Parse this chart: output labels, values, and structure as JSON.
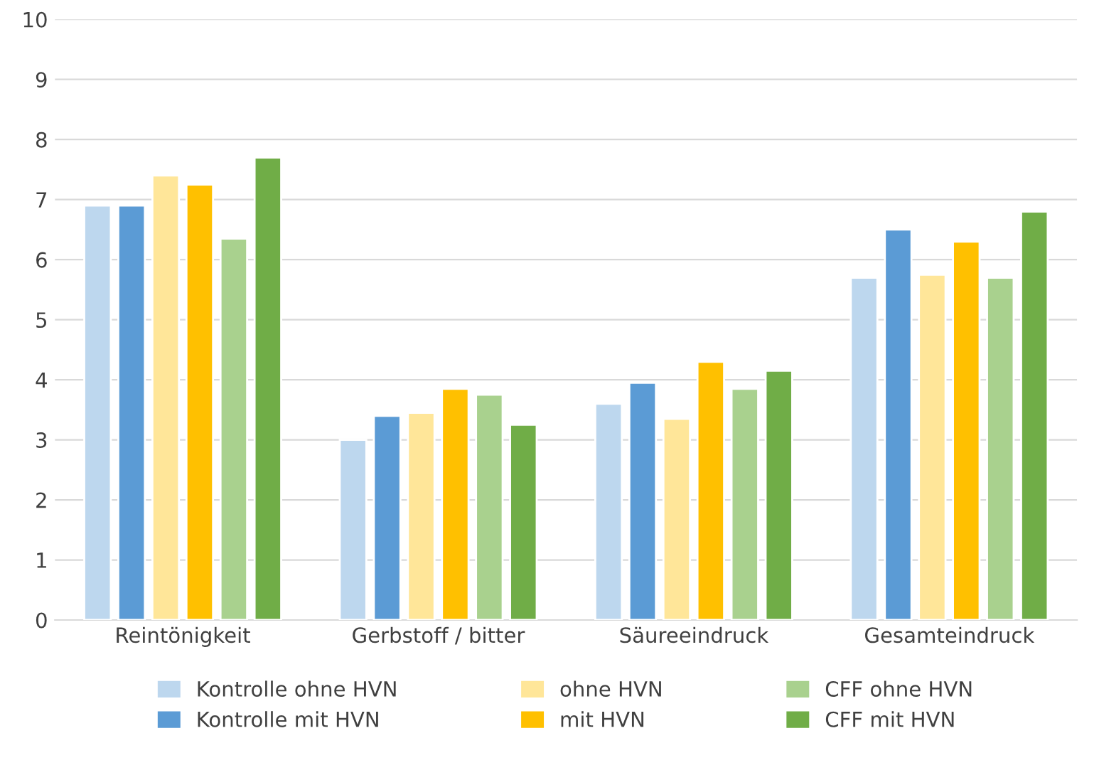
{
  "chart_data": {
    "type": "bar",
    "categories": [
      "Reintönigkeit",
      "Gerbstoff / bitter",
      "Säureeindruck",
      "Gesamteindruck"
    ],
    "series": [
      {
        "name": "Kontrolle ohne HVN",
        "color": "#bdd7ee",
        "values": [
          6.9,
          3.0,
          3.6,
          5.7
        ]
      },
      {
        "name": "Kontrolle mit HVN",
        "color": "#5b9bd5",
        "values": [
          6.9,
          3.4,
          3.95,
          6.5
        ]
      },
      {
        "name": "ohne HVN",
        "color": "#ffe699",
        "values": [
          7.4,
          3.45,
          3.35,
          5.75
        ]
      },
      {
        "name": "mit HVN",
        "color": "#ffc000",
        "values": [
          7.25,
          3.85,
          4.3,
          6.3
        ]
      },
      {
        "name": "CFF ohne HVN",
        "color": "#a9d18e",
        "values": [
          6.35,
          3.75,
          3.85,
          5.7
        ]
      },
      {
        "name": "CFF mit HVN",
        "color": "#70ad47",
        "values": [
          7.7,
          3.25,
          4.15,
          6.8
        ]
      }
    ],
    "ylim": [
      0,
      10
    ],
    "yticks": [
      0,
      1,
      2,
      3,
      4,
      5,
      6,
      7,
      8,
      9,
      10
    ],
    "grid": "y",
    "legend": "bottom"
  }
}
